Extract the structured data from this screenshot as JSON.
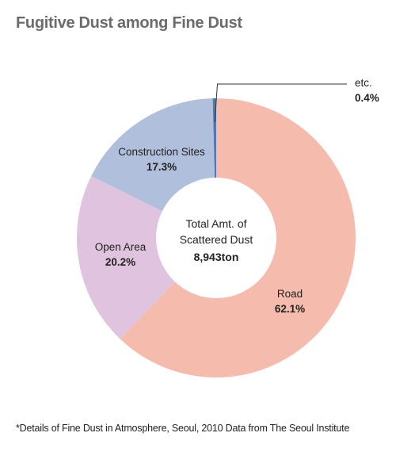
{
  "title": "Fugitive Dust among Fine Dust",
  "footnote": "*Details of Fine Dust in Atmosphere, Seoul, 2010 Data from The Seoul Institute",
  "chart_data": {
    "type": "pie",
    "variant": "donut",
    "center_label": [
      "Total Amt. of",
      "Scattered Dust",
      "8,943ton"
    ],
    "slices": [
      {
        "label": "Road",
        "value": 62.1,
        "value_label": "62.1%",
        "color": "#f5bbad"
      },
      {
        "label": "Open Area",
        "value": 20.2,
        "value_label": "20.2%",
        "color": "#dfc3df"
      },
      {
        "label": "Construction Sites",
        "value": 17.3,
        "value_label": "17.3%",
        "color": "#b0bfdc"
      },
      {
        "label": "etc.",
        "value": 0.4,
        "value_label": "0.4%",
        "color": "#4f79b0"
      }
    ],
    "start_angle": "12 o'clock",
    "direction": "clockwise",
    "legend": "none"
  }
}
